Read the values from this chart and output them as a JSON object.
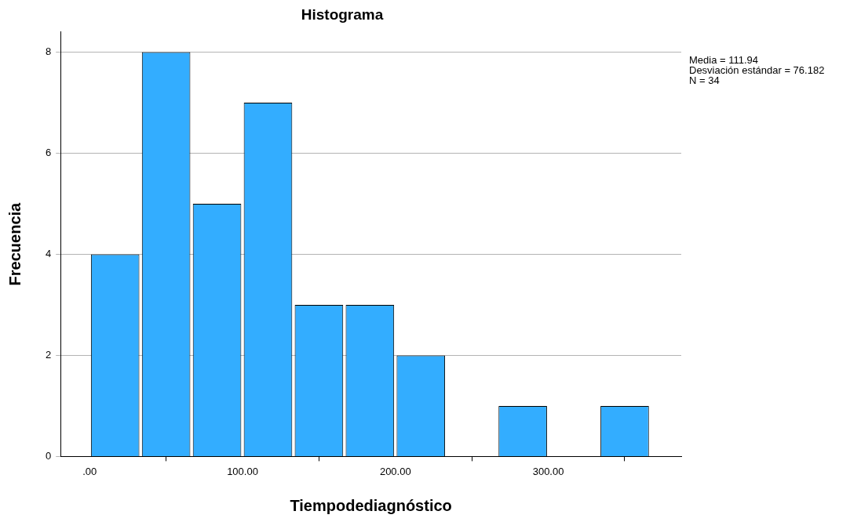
{
  "chart_data": {
    "type": "histogram",
    "title": "Histograma",
    "xlabel": "Tiempodediagnóstico",
    "ylabel": "Frecuencia",
    "bins": [
      0,
      33.33,
      66.67,
      100,
      133.33,
      166.67,
      200,
      233.33,
      266.67,
      300,
      333.33,
      366.67
    ],
    "values": [
      4,
      8,
      5,
      7,
      3,
      3,
      2,
      0,
      1,
      0,
      1
    ],
    "color": "#33adff",
    "xlim": [
      -19,
      387
    ],
    "xticks": [
      {
        "value": 0,
        "label": ".00"
      },
      {
        "value": 100,
        "label": "100.00"
      },
      {
        "value": 200,
        "label": "200.00"
      },
      {
        "value": 300,
        "label": "300.00"
      }
    ],
    "ylim": [
      0,
      8.4
    ],
    "yticks": [
      0,
      2,
      4,
      6,
      8
    ],
    "grid": "y",
    "annotations": [
      "Media = 111.94",
      "Desviación estándar = 76.182",
      "N = 34"
    ]
  }
}
